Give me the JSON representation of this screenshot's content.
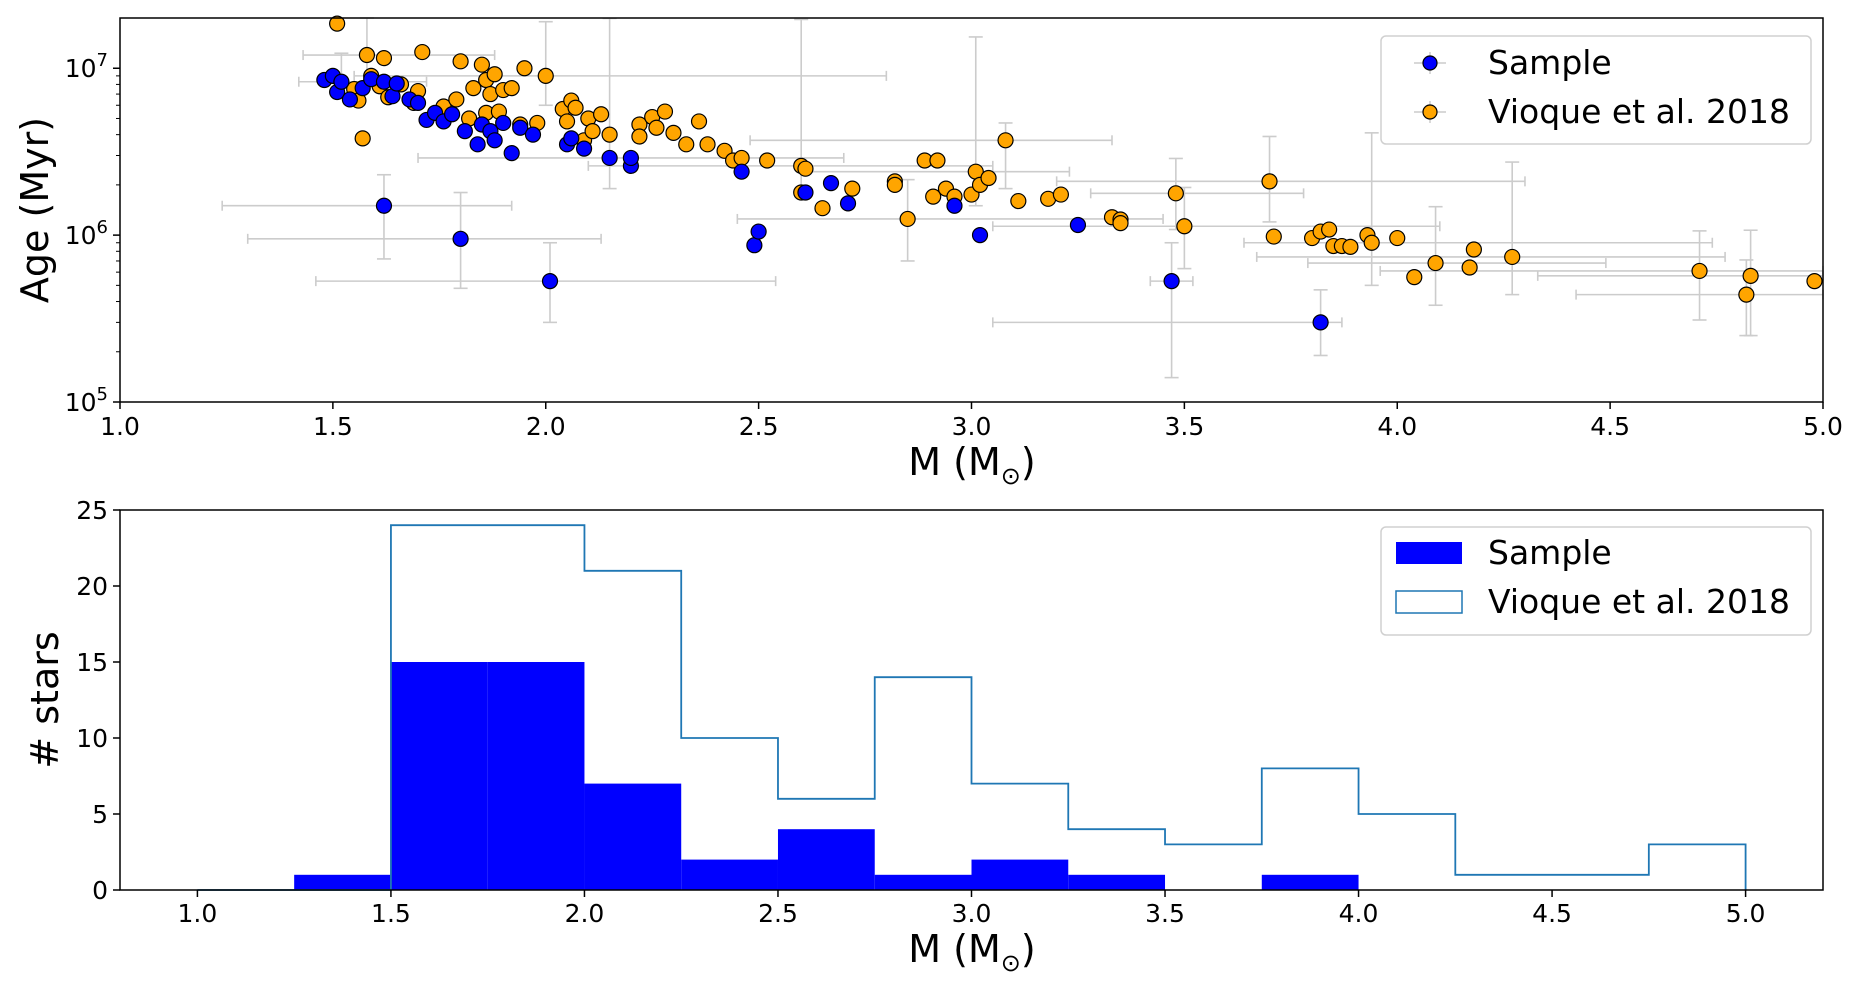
{
  "chart_data": [
    {
      "type": "scatter",
      "xlabel_main": "M (M",
      "xlabel_sub": "⊙",
      "xlabel_close": ")",
      "ylabel": "Age (Myr)",
      "xlim": [
        1.0,
        5.0
      ],
      "ylim": [
        100000,
        20000000
      ],
      "yscale": "log",
      "xticks": [
        "1.0",
        "1.5",
        "2.0",
        "2.5",
        "3.0",
        "3.5",
        "4.0",
        "4.5",
        "5.0"
      ],
      "yticks": [
        {
          "value": 100000,
          "base": "10",
          "exp": "5"
        },
        {
          "value": 1000000,
          "base": "10",
          "exp": "6"
        },
        {
          "value": 10000000,
          "base": "10",
          "exp": "7"
        }
      ],
      "legend_placement": "upper right",
      "errorbar_color": "#cccccc",
      "series": [
        {
          "name": "Sample",
          "color": "#0000ff",
          "points": [
            {
              "x": 1.48,
              "y": 8500000
            },
            {
              "x": 1.5,
              "y": 9000000
            },
            {
              "x": 1.51,
              "y": 7200000
            },
            {
              "x": 1.52,
              "y": 8300000
            },
            {
              "x": 1.54,
              "y": 6500000
            },
            {
              "x": 1.57,
              "y": 7600000
            },
            {
              "x": 1.59,
              "y": 8600000
            },
            {
              "x": 1.62,
              "y": 8300000
            },
            {
              "x": 1.64,
              "y": 6800000
            },
            {
              "x": 1.65,
              "y": 8100000
            },
            {
              "x": 1.68,
              "y": 6500000
            },
            {
              "x": 1.7,
              "y": 6200000
            },
            {
              "x": 1.72,
              "y": 4900000
            },
            {
              "x": 1.74,
              "y": 5400000
            },
            {
              "x": 1.76,
              "y": 4800000
            },
            {
              "x": 1.78,
              "y": 5300000
            },
            {
              "x": 1.81,
              "y": 4200000
            },
            {
              "x": 1.84,
              "y": 3500000
            },
            {
              "x": 1.85,
              "y": 4600000
            },
            {
              "x": 1.87,
              "y": 4200000
            },
            {
              "x": 1.88,
              "y": 3700000
            },
            {
              "x": 1.9,
              "y": 4700000
            },
            {
              "x": 1.92,
              "y": 3100000
            },
            {
              "x": 1.94,
              "y": 4400000
            },
            {
              "x": 1.97,
              "y": 4000000
            },
            {
              "x": 2.05,
              "y": 3500000
            },
            {
              "x": 2.06,
              "y": 3800000
            },
            {
              "x": 2.09,
              "y": 3300000
            },
            {
              "x": 2.15,
              "y": 2900000
            },
            {
              "x": 2.2,
              "y": 2600000
            },
            {
              "x": 2.2,
              "y": 2900000
            },
            {
              "x": 2.46,
              "y": 2400000
            },
            {
              "x": 2.49,
              "y": 870000
            },
            {
              "x": 2.5,
              "y": 1050000
            },
            {
              "x": 2.61,
              "y": 1800000
            },
            {
              "x": 2.67,
              "y": 2050000
            },
            {
              "x": 2.71,
              "y": 1550000
            },
            {
              "x": 2.96,
              "y": 1500000
            },
            {
              "x": 3.02,
              "y": 1000000
            },
            {
              "x": 3.25,
              "y": 1150000
            },
            {
              "x": 1.62,
              "y": 1500000
            },
            {
              "x": 1.8,
              "y": 950000
            },
            {
              "x": 2.01,
              "y": 530000
            },
            {
              "x": 3.47,
              "y": 530000
            },
            {
              "x": 3.82,
              "y": 300000
            }
          ],
          "errorbars": [
            {
              "x": 1.62,
              "y": 1500000,
              "xerr": [
                0.38,
                0.3
              ],
              "yerr": [
                780000,
                800000
              ]
            },
            {
              "x": 1.8,
              "y": 950000,
              "xerr": [
                0.5,
                0.33
              ],
              "yerr": [
                470000,
                850000
              ]
            },
            {
              "x": 2.01,
              "y": 530000,
              "xerr": [
                0.55,
                0.53
              ],
              "yerr": [
                230000,
                370000
              ]
            },
            {
              "x": 3.82,
              "y": 300000,
              "xerr": [
                0.77,
                0.05
              ],
              "yerr": [
                110000,
                170000
              ]
            },
            {
              "x": 3.47,
              "y": 530000,
              "xerr": [
                0.05,
                0.05
              ],
              "yerr": [
                390000,
                370000
              ]
            },
            {
              "x": 2.15,
              "y": 2900000,
              "xerr": [
                0.45,
                0.55
              ],
              "yerr": [
                1000000,
                17000000
              ]
            },
            {
              "x": 1.52,
              "y": 8300000,
              "xerr": [
                0.1,
                0.2
              ],
              "yerr": [
                1500000,
                4000000
              ]
            }
          ]
        },
        {
          "name": "Vioque et al. 2018",
          "color": "#ffa500",
          "points": [
            {
              "x": 1.51,
              "y": 18500000
            },
            {
              "x": 1.55,
              "y": 7500000
            },
            {
              "x": 1.56,
              "y": 6400000
            },
            {
              "x": 1.57,
              "y": 3800000
            },
            {
              "x": 1.58,
              "y": 12000000
            },
            {
              "x": 1.59,
              "y": 9000000
            },
            {
              "x": 1.61,
              "y": 7800000
            },
            {
              "x": 1.62,
              "y": 11500000
            },
            {
              "x": 1.63,
              "y": 6700000
            },
            {
              "x": 1.66,
              "y": 8000000
            },
            {
              "x": 1.69,
              "y": 6200000
            },
            {
              "x": 1.7,
              "y": 7300000
            },
            {
              "x": 1.71,
              "y": 12500000
            },
            {
              "x": 1.76,
              "y": 5900000
            },
            {
              "x": 1.79,
              "y": 6500000
            },
            {
              "x": 1.8,
              "y": 11000000
            },
            {
              "x": 1.82,
              "y": 5000000
            },
            {
              "x": 1.83,
              "y": 7600000
            },
            {
              "x": 1.85,
              "y": 10500000
            },
            {
              "x": 1.86,
              "y": 5400000
            },
            {
              "x": 1.86,
              "y": 8500000
            },
            {
              "x": 1.87,
              "y": 7000000
            },
            {
              "x": 1.88,
              "y": 9200000
            },
            {
              "x": 1.89,
              "y": 5500000
            },
            {
              "x": 1.9,
              "y": 7400000
            },
            {
              "x": 1.92,
              "y": 7600000
            },
            {
              "x": 1.94,
              "y": 4600000
            },
            {
              "x": 1.95,
              "y": 10000000
            },
            {
              "x": 1.98,
              "y": 4700000
            },
            {
              "x": 2.0,
              "y": 9000000
            },
            {
              "x": 2.04,
              "y": 5700000
            },
            {
              "x": 2.05,
              "y": 4800000
            },
            {
              "x": 2.06,
              "y": 6400000
            },
            {
              "x": 2.07,
              "y": 5800000
            },
            {
              "x": 2.09,
              "y": 3700000
            },
            {
              "x": 2.1,
              "y": 5000000
            },
            {
              "x": 2.11,
              "y": 4200000
            },
            {
              "x": 2.13,
              "y": 5300000
            },
            {
              "x": 2.15,
              "y": 4000000
            },
            {
              "x": 2.22,
              "y": 4600000
            },
            {
              "x": 2.22,
              "y": 3900000
            },
            {
              "x": 2.25,
              "y": 5100000
            },
            {
              "x": 2.26,
              "y": 4400000
            },
            {
              "x": 2.28,
              "y": 5500000
            },
            {
              "x": 2.3,
              "y": 4100000
            },
            {
              "x": 2.33,
              "y": 3500000
            },
            {
              "x": 2.36,
              "y": 4800000
            },
            {
              "x": 2.38,
              "y": 3500000
            },
            {
              "x": 2.42,
              "y": 3200000
            },
            {
              "x": 2.44,
              "y": 2800000
            },
            {
              "x": 2.46,
              "y": 2900000
            },
            {
              "x": 2.52,
              "y": 2800000
            },
            {
              "x": 2.6,
              "y": 2600000
            },
            {
              "x": 2.61,
              "y": 2500000
            },
            {
              "x": 2.6,
              "y": 1800000
            },
            {
              "x": 2.65,
              "y": 1450000
            },
            {
              "x": 2.72,
              "y": 1900000
            },
            {
              "x": 2.82,
              "y": 2100000
            },
            {
              "x": 2.82,
              "y": 2000000
            },
            {
              "x": 2.85,
              "y": 1250000
            },
            {
              "x": 2.89,
              "y": 2800000
            },
            {
              "x": 2.92,
              "y": 2800000
            },
            {
              "x": 2.91,
              "y": 1700000
            },
            {
              "x": 2.94,
              "y": 1900000
            },
            {
              "x": 2.96,
              "y": 1700000
            },
            {
              "x": 3.0,
              "y": 1750000
            },
            {
              "x": 3.01,
              "y": 2400000
            },
            {
              "x": 3.02,
              "y": 2000000
            },
            {
              "x": 3.04,
              "y": 2200000
            },
            {
              "x": 3.08,
              "y": 3700000
            },
            {
              "x": 3.11,
              "y": 1600000
            },
            {
              "x": 3.18,
              "y": 1650000
            },
            {
              "x": 3.21,
              "y": 1750000
            },
            {
              "x": 3.33,
              "y": 1280000
            },
            {
              "x": 3.35,
              "y": 1240000
            },
            {
              "x": 3.35,
              "y": 1180000
            },
            {
              "x": 3.48,
              "y": 1780000
            },
            {
              "x": 3.5,
              "y": 1130000
            },
            {
              "x": 3.7,
              "y": 2100000
            },
            {
              "x": 3.71,
              "y": 980000
            },
            {
              "x": 3.8,
              "y": 960000
            },
            {
              "x": 3.82,
              "y": 1050000
            },
            {
              "x": 3.84,
              "y": 1080000
            },
            {
              "x": 3.85,
              "y": 860000
            },
            {
              "x": 3.87,
              "y": 860000
            },
            {
              "x": 3.89,
              "y": 850000
            },
            {
              "x": 3.93,
              "y": 1000000
            },
            {
              "x": 3.94,
              "y": 900000
            },
            {
              "x": 4.0,
              "y": 960000
            },
            {
              "x": 4.04,
              "y": 560000
            },
            {
              "x": 4.09,
              "y": 680000
            },
            {
              "x": 4.17,
              "y": 640000
            },
            {
              "x": 4.18,
              "y": 820000
            },
            {
              "x": 4.27,
              "y": 740000
            },
            {
              "x": 4.71,
              "y": 610000
            },
            {
              "x": 4.82,
              "y": 440000
            },
            {
              "x": 4.83,
              "y": 570000
            },
            {
              "x": 4.98,
              "y": 530000
            }
          ],
          "errorbars": [
            {
              "x": 4.71,
              "y": 610000,
              "xerr": [
                0.75,
                0.29
              ],
              "yerr": [
                300000,
                450000
              ]
            },
            {
              "x": 4.82,
              "y": 440000,
              "xerr": [
                0.4,
                0.18
              ],
              "yerr": [
                190000,
                270000
              ]
            },
            {
              "x": 4.83,
              "y": 570000,
              "xerr": [
                0.5,
                0.17
              ],
              "yerr": [
                320000,
                500000
              ]
            },
            {
              "x": 4.27,
              "y": 740000,
              "xerr": [
                0.6,
                0.5
              ],
              "yerr": [
                300000,
                2000000
              ]
            },
            {
              "x": 4.09,
              "y": 680000,
              "xerr": [
                0.3,
                0.4
              ],
              "yerr": [
                300000,
                800000
              ]
            },
            {
              "x": 3.7,
              "y": 2100000,
              "xerr": [
                0.5,
                0.6
              ],
              "yerr": [
                900000,
                1800000
              ]
            },
            {
              "x": 3.94,
              "y": 900000,
              "xerr": [
                0.3,
                0.8
              ],
              "yerr": [
                400000,
                3200000
              ]
            },
            {
              "x": 3.48,
              "y": 1780000,
              "xerr": [
                0.2,
                0.3
              ],
              "yerr": [
                700000,
                1100000
              ]
            },
            {
              "x": 3.08,
              "y": 3700000,
              "xerr": [
                0.6,
                0.25
              ],
              "yerr": [
                1800000,
                1000000
              ]
            },
            {
              "x": 2.85,
              "y": 1250000,
              "xerr": [
                0.4,
                0.6
              ],
              "yerr": [
                550000,
                900000
              ]
            },
            {
              "x": 3.5,
              "y": 1130000,
              "xerr": [
                0.45,
                0.6
              ],
              "yerr": [
                500000,
                800000
              ]
            },
            {
              "x": 3.01,
              "y": 2400000,
              "xerr": [
                0.4,
                0.22
              ],
              "yerr": [
                900000,
                13000000
              ]
            },
            {
              "x": 2.6,
              "y": 2600000,
              "xerr": [
                0.5,
                0.45
              ],
              "yerr": [
                900000,
                17000000
              ]
            },
            {
              "x": 2.0,
              "y": 9000000,
              "xerr": [
                0.45,
                0.8
              ],
              "yerr": [
                3000000,
                10000000
              ]
            },
            {
              "x": 1.58,
              "y": 12000000,
              "xerr": [
                0.15,
                0.3
              ],
              "yerr": [
                4000000,
                8000000
              ]
            }
          ]
        }
      ]
    },
    {
      "type": "bar",
      "histtype": "step",
      "xlabel_main": "M (M",
      "xlabel_sub": "⊙",
      "xlabel_close": ")",
      "ylabel": "# stars",
      "xlim": [
        0.8,
        5.2
      ],
      "ylim": [
        0,
        25
      ],
      "xticks": [
        "1.0",
        "1.5",
        "2.0",
        "2.5",
        "3.0",
        "3.5",
        "4.0",
        "4.5",
        "5.0"
      ],
      "yticks": [
        "0",
        "5",
        "10",
        "15",
        "20",
        "25"
      ],
      "legend_placement": "upper right",
      "bin_edges": [
        1.0,
        1.25,
        1.5,
        1.75,
        2.0,
        2.25,
        2.5,
        2.75,
        3.0,
        3.25,
        3.5,
        3.75,
        4.0,
        4.25,
        4.5,
        4.75,
        5.0
      ],
      "series": [
        {
          "name": "Sample",
          "style": "filled",
          "color": "#0000ff",
          "values": [
            0,
            1,
            15,
            15,
            7,
            2,
            4,
            1,
            2,
            1,
            0,
            1,
            0,
            0,
            0,
            0
          ]
        },
        {
          "name": "Vioque et al. 2018",
          "style": "step",
          "color": "#1f77b4",
          "values": [
            0,
            0,
            24,
            24,
            21,
            10,
            6,
            14,
            7,
            4,
            3,
            8,
            5,
            1,
            1,
            3
          ]
        }
      ]
    }
  ]
}
